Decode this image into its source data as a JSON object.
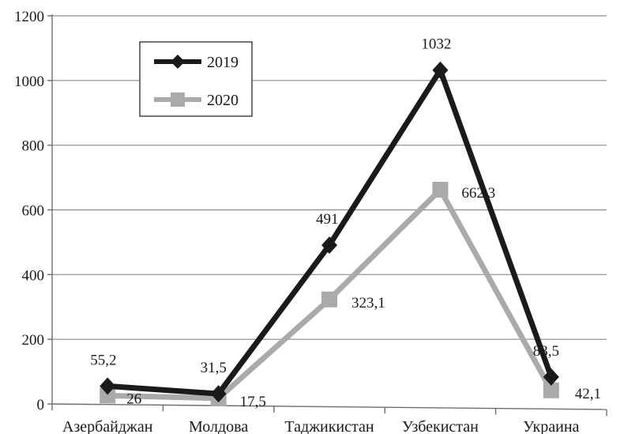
{
  "chart_data": {
    "type": "line",
    "categories": [
      "Азербайджан",
      "Молдова",
      "Таджикистан",
      "Узбекистан",
      "Украина"
    ],
    "series": [
      {
        "name": "2019",
        "values": [
          55.2,
          31.5,
          491,
          1032,
          83.5
        ],
        "labels": [
          "55,2",
          "31,5",
          "491",
          "1032",
          "83,5"
        ],
        "color": "#1a1a1a",
        "marker": "diamond"
      },
      {
        "name": "2020",
        "values": [
          26,
          17.5,
          323.1,
          662.3,
          42.1
        ],
        "labels": [
          "26",
          "17,5",
          "323,1",
          "662,3",
          "42,1"
        ],
        "color": "#aaaaaa",
        "marker": "square"
      }
    ],
    "y_ticks": [
      0,
      200,
      400,
      600,
      800,
      1000,
      1200
    ],
    "ylim": [
      0,
      1200
    ],
    "grid": true,
    "legend": "top-left"
  }
}
